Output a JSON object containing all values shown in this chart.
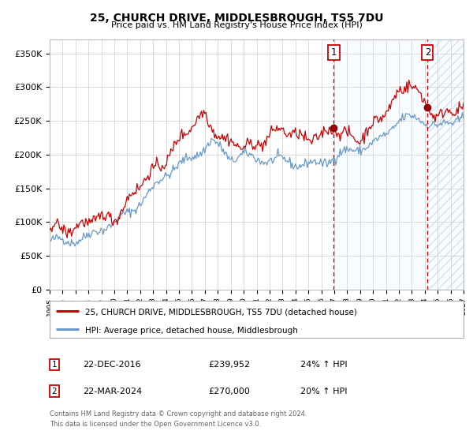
{
  "title": "25, CHURCH DRIVE, MIDDLESBROUGH, TS5 7DU",
  "subtitle": "Price paid vs. HM Land Registry's House Price Index (HPI)",
  "ylabel_ticks": [
    "£0",
    "£50K",
    "£100K",
    "£150K",
    "£200K",
    "£250K",
    "£300K",
    "£350K"
  ],
  "ytick_values": [
    0,
    50000,
    100000,
    150000,
    200000,
    250000,
    300000,
    350000
  ],
  "ylim": [
    0,
    370000
  ],
  "year_start": 1995,
  "year_end": 2027,
  "marker1_date": 2016.97,
  "marker1_price": 239952,
  "marker1_label": "22-DEC-2016",
  "marker1_text": "£239,952",
  "marker1_hpi": "24% ↑ HPI",
  "marker2_date": 2024.22,
  "marker2_price": 270000,
  "marker2_label": "22-MAR-2024",
  "marker2_text": "£270,000",
  "marker2_hpi": "20% ↑ HPI",
  "legend_line1": "25, CHURCH DRIVE, MIDDLESBROUGH, TS5 7DU (detached house)",
  "legend_line2": "HPI: Average price, detached house, Middlesbrough",
  "footer1": "Contains HM Land Registry data © Crown copyright and database right 2024.",
  "footer2": "This data is licensed under the Open Government Licence v3.0.",
  "line_color_red": "#cc0000",
  "line_color_blue": "#6699cc",
  "vline_color": "#cc0000",
  "bg_color": "#ffffff",
  "grid_color": "#cccccc",
  "shade_color_blue": "#ddeeff"
}
